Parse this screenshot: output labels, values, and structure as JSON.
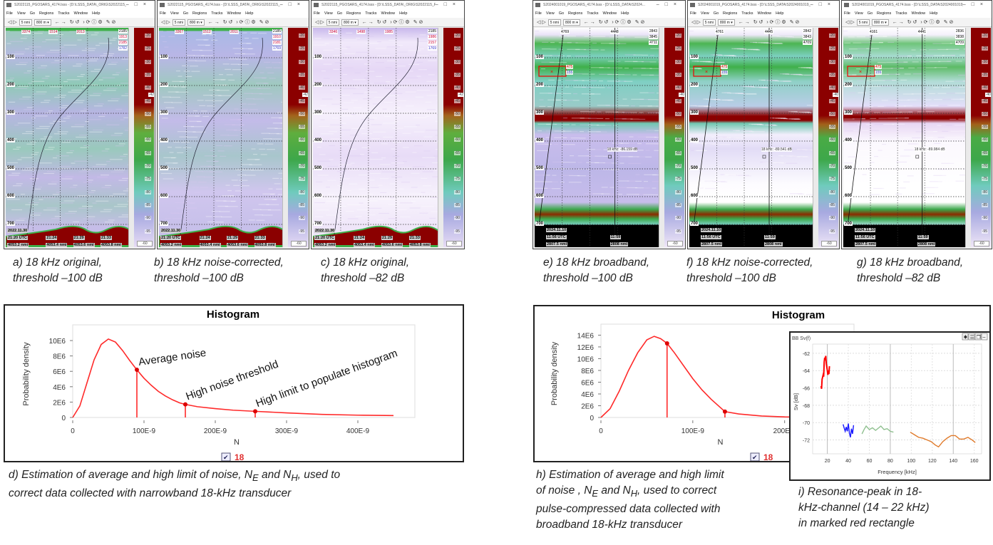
{
  "menu": [
    "File",
    "View",
    "Go",
    "Regions",
    "Tracks",
    "Window",
    "Help"
  ],
  "toolbar": {
    "range": "5 nmi",
    "depth": "800 m"
  },
  "colorbar_labels": [
    "-20",
    "-25",
    "-30",
    "-35",
    "-40",
    "-45",
    "-50",
    "-55",
    "-60",
    "-65",
    "-70",
    "-75",
    "-80",
    "-85",
    "-90",
    "-95"
  ],
  "colorbar_min_box": "-60",
  "panels": [
    {
      "id": "a",
      "title": "S2022115_PGOSARS_4174.lsss - [D:\\LSSS_DATA\\_ORIG\\S2022115_PG.O.Sars[4174]_CRIMAC\\ACOU",
      "style": "orig",
      "depths": [
        "100",
        "200",
        "300",
        "400",
        "500",
        "600",
        "700"
      ],
      "top_labels": [
        "3374",
        "1514",
        "2013"
      ],
      "stack": [
        "2185",
        "1913",
        "2185",
        "1782"
      ],
      "threshold_marker": "-42",
      "date": "2022.11.30",
      "times": [
        {
          "t": "21:20 UTC",
          "d": "4053.2 nmi"
        },
        {
          "t": "21:24",
          "d": "4053.4 nmi"
        },
        {
          "t": "21:29",
          "d": "4053.6 nmi"
        },
        {
          "t": "21:33",
          "d": "4053.8 nmi"
        }
      ]
    },
    {
      "id": "b",
      "title": "S2022115_PGOSARS_4174.lsss - [D:\\LSSS_DATA\\_ORIG\\S2022115_PG.O.Sars[4174]_CRIMAC\\ACOU",
      "style": "corr",
      "depths": [
        "100",
        "200",
        "300",
        "400",
        "500",
        "600",
        "700"
      ],
      "top_labels": [
        "3367",
        "1512",
        "2011"
      ],
      "stack": [
        "2185",
        "1910",
        "2181",
        "1769"
      ],
      "threshold_marker": "-42",
      "date": "2022.11.30",
      "times": [
        {
          "t": "21:20 UTC",
          "d": "4053.2 nmi"
        },
        {
          "t": "21:24",
          "d": "4053.4 nmi"
        },
        {
          "t": "21:29",
          "d": "4053.6 nmi"
        },
        {
          "t": "21:33",
          "d": "4053.8 nmi"
        }
      ]
    },
    {
      "id": "c",
      "title": "S2022115_PGOSARS_4174.lsss - [D:\\LSSS_DATA\\_ORIG\\S2022115_PG.O.Sars[4174]_CRIMAC\\ACOU",
      "style": "light",
      "depths": [
        "100",
        "200",
        "300",
        "400",
        "500",
        "600",
        "700"
      ],
      "top_labels": [
        "3346",
        "1498",
        "1985"
      ],
      "stack": [
        "2185",
        "1986",
        "2157",
        "1769"
      ],
      "threshold_marker": "-42",
      "date": "2022.11.30",
      "times": [
        {
          "t": "21:20 UTC",
          "d": "4053.2 nmi"
        },
        {
          "t": "21:24",
          "d": "4053.4 nmi"
        },
        {
          "t": "21:29",
          "d": "4053.6 nmi"
        },
        {
          "t": "21:33",
          "d": "4053.8 nmi"
        }
      ]
    },
    {
      "id": "e",
      "title": "S2024001019_PGOSARS_4174.lsss - [D:\\LSSS_DATA\\S2024...",
      "style": "bb",
      "depths": [
        "100",
        "200",
        "300",
        "400",
        "500",
        "600",
        "700"
      ],
      "top_labels": [
        "4769",
        "4448"
      ],
      "stack": [
        "2843",
        "3845",
        "4711"
      ],
      "rect_labels": [
        "475",
        "155"
      ],
      "marker": "18 kHz: -86.159 dB",
      "threshold_marker": "-40",
      "date": "2024.11.10",
      "times": [
        {
          "t": "11:56 UTC",
          "d": "2807.5 nmi"
        },
        {
          "t": "11:59",
          "d": "2808 nmi"
        }
      ]
    },
    {
      "id": "f",
      "title": "S2024001019_PGOSARS_4174.lsss - [D:\\LSSS_DATA\\S2024001019_PGOS...",
      "style": "bbcorr",
      "depths": [
        "100",
        "200",
        "300",
        "400",
        "500",
        "600",
        "700"
      ],
      "top_labels": [
        "4761",
        "4445"
      ],
      "stack": [
        "2842",
        "3843",
        "4709"
      ],
      "rect_labels": [
        "475",
        "155"
      ],
      "marker": "18 kHz: -89.541 dB",
      "threshold_marker": "-40",
      "date": "2024.11.10",
      "times": [
        {
          "t": "11:56 UTC",
          "d": "2807.5 nmi"
        },
        {
          "t": "11:59",
          "d": "2808 nmi"
        }
      ]
    },
    {
      "id": "g",
      "title": "S2024001019_PGOSARS_4174.lsss - [D:\\LSSS_DATA\\S2024001019_PGOSARS_4174...",
      "style": "bblight",
      "depths": [
        "100",
        "200",
        "300",
        "400",
        "500",
        "600",
        "700"
      ],
      "top_labels": [
        "4161",
        "4441"
      ],
      "stack": [
        "2836",
        "3838",
        "4709"
      ],
      "rect_labels": [
        "475",
        "155"
      ],
      "marker": "18 kHz: -89.984 dB",
      "threshold_marker": "-40",
      "date": "2024.11.10",
      "times": [
        {
          "t": "11:56 UTC",
          "d": "2807.5 nmi"
        },
        {
          "t": "11:59",
          "d": "2808 nmi"
        }
      ]
    }
  ],
  "captions": {
    "a": [
      "a) 18 kHz original,",
      "threshold –100 dB"
    ],
    "b": [
      "b) 18 kHz noise-corrected,",
      "threshold –100 dB"
    ],
    "c": [
      "c) 18 kHz original,",
      "threshold –82 dB"
    ],
    "e": [
      "e) 18 kHz broadband,",
      "threshold –100 dB"
    ],
    "f": [
      "f) 18 kHz noise-corrected,",
      "threshold –100 dB"
    ],
    "g": [
      "g) 18 kHz broadband,",
      "threshold –82 dB"
    ],
    "d": {
      "pre": "d) Estimation of average and high limit of noise, ",
      "n": "N",
      "e": "E",
      "and": " and ",
      "h": "H",
      "post": ", used to",
      "line2": "correct data collected with narrowband 18-kHz transducer"
    },
    "h": {
      "line1": "h) Estimation of average and high limit",
      "pre": "of noise , ",
      "n": "N",
      "e": "E",
      "and": " and ",
      "h": "H",
      "post": ", used to correct",
      "line3": "pulse-compressed data collected with",
      "line4": "broadband 18-kHz transducer"
    },
    "i": [
      "i) Resonance-peak in 18-",
      "kHz-channel (14 – 22 kHz)",
      "in marked red rectangle"
    ]
  },
  "colors": {
    "curve": "#ff2a2a",
    "legend": "#e03030",
    "sv_18": "#ff0000",
    "sv_38": "#1a1aff",
    "sv_70": "#8fc08f",
    "sv_120": "#e07a2a"
  },
  "chart_data": [
    {
      "type": "line",
      "title": "Histogram",
      "xlabel": "N",
      "ylabel": "Probability density",
      "x_unit": "E-9",
      "y_unit": "E6",
      "xticks": [
        "0",
        "100E-9",
        "200E-9",
        "300E-9",
        "400E-9"
      ],
      "xtick_values": [
        0,
        100,
        200,
        300,
        400
      ],
      "yticks": [
        "0",
        "2E6",
        "4E6",
        "6E6",
        "8E6",
        "10E6"
      ],
      "ytick_values": [
        0,
        2,
        4,
        6,
        8,
        10
      ],
      "xlim": [
        0,
        460
      ],
      "ylim": [
        0,
        11.3
      ],
      "grid": false,
      "legend": {
        "checked": true,
        "label": "18",
        "placement": "bottom"
      },
      "series": [
        {
          "name": "18",
          "points": [
            [
              0,
              0
            ],
            [
              10,
              1.5
            ],
            [
              20,
              4.5
            ],
            [
              30,
              7.5
            ],
            [
              40,
              9.5
            ],
            [
              50,
              10.2
            ],
            [
              60,
              9.8
            ],
            [
              70,
              8.7
            ],
            [
              80,
              7.4
            ],
            [
              90,
              6.2
            ],
            [
              100,
              5.1
            ],
            [
              110,
              4.2
            ],
            [
              120,
              3.4
            ],
            [
              130,
              2.8
            ],
            [
              140,
              2.3
            ],
            [
              150,
              1.9
            ],
            [
              158,
              1.7
            ],
            [
              175,
              1.4
            ],
            [
              200,
              1.15
            ],
            [
              225,
              0.95
            ],
            [
              256,
              0.8
            ],
            [
              300,
              0.6
            ],
            [
              350,
              0.4
            ],
            [
              400,
              0.3
            ],
            [
              450,
              0.25
            ]
          ]
        }
      ],
      "markers": [
        {
          "x": 90,
          "y": 6.2,
          "label": "Average noise"
        },
        {
          "x": 158,
          "y": 1.7,
          "label": "High noise threshold"
        },
        {
          "x": 256,
          "y": 0.8,
          "label": "High limit to populate histogram"
        }
      ]
    },
    {
      "type": "line",
      "title": "Histogram",
      "xlabel": "N",
      "ylabel": "Probability density",
      "xticks": [
        "0",
        "100E-9",
        "200E-9"
      ],
      "xtick_values": [
        0,
        100,
        200
      ],
      "yticks": [
        "0",
        "2E6",
        "4E6",
        "6E6",
        "8E6",
        "10E6",
        "12E6",
        "14E6"
      ],
      "ytick_values": [
        0,
        2,
        4,
        6,
        8,
        10,
        12,
        14
      ],
      "xlim": [
        0,
        260
      ],
      "ylim": [
        0,
        14.9
      ],
      "grid": false,
      "legend": {
        "checked": true,
        "label": "18",
        "placement": "bottom"
      },
      "series": [
        {
          "name": "18",
          "points": [
            [
              0,
              0
            ],
            [
              10,
              1.5
            ],
            [
              20,
              4.5
            ],
            [
              30,
              8
            ],
            [
              40,
              11
            ],
            [
              50,
              13.2
            ],
            [
              58,
              13.8
            ],
            [
              65,
              13.4
            ],
            [
              72,
              12.6
            ],
            [
              80,
              11
            ],
            [
              90,
              8.8
            ],
            [
              100,
              6.6
            ],
            [
              110,
              4.7
            ],
            [
              120,
              3.1
            ],
            [
              135,
              1.0
            ],
            [
              150,
              0.6
            ],
            [
              175,
              0.25
            ],
            [
              200,
              0.1
            ],
            [
              230,
              0.05
            ],
            [
              260,
              0.03
            ]
          ]
        }
      ],
      "markers": [
        {
          "x": 72,
          "y": 12.6
        },
        {
          "x": 135,
          "y": 1.0
        }
      ]
    },
    {
      "type": "line",
      "title": "BB Sv(f)",
      "xlabel": "Frequency [kHz]",
      "ylabel": "Sv [dB]",
      "xticks": [
        "20",
        "40",
        "60",
        "80",
        "100",
        "120",
        "140",
        "160"
      ],
      "xtick_values": [
        20,
        40,
        60,
        80,
        100,
        120,
        140,
        160
      ],
      "yticks": [
        "-62",
        "-64",
        "-66",
        "-68",
        "-70",
        "-72"
      ],
      "ytick_values": [
        -62,
        -64,
        -66,
        -68,
        -70,
        -72
      ],
      "xlim": [
        6,
        167
      ],
      "ylim": [
        -73.6,
        -61.6
      ],
      "grid": true,
      "series": [
        {
          "points": [
            [
              14,
              -65.8
            ],
            [
              14.5,
              -66.1
            ],
            [
              15,
              -65
            ],
            [
              16,
              -64.5
            ],
            [
              16.5,
              -64.7
            ],
            [
              17,
              -63
            ],
            [
              17.5,
              -62.5
            ],
            [
              18,
              -62.8
            ],
            [
              18.5,
              -62.3
            ],
            [
              19,
              -63.2
            ],
            [
              19.5,
              -63.6
            ],
            [
              20,
              -64
            ],
            [
              20.5,
              -64.5
            ],
            [
              21,
              -64
            ],
            [
              21.5,
              -64.4
            ],
            [
              22,
              -63.5
            ]
          ]
        },
        {
          "points": [
            [
              35,
              -70.2
            ],
            [
              36,
              -70.6
            ],
            [
              37,
              -71
            ],
            [
              38,
              -70.5
            ],
            [
              39,
              -71
            ],
            [
              40,
              -70.1
            ],
            [
              41,
              -71.2
            ],
            [
              42,
              -71.7
            ],
            [
              43,
              -70.7
            ],
            [
              44,
              -71.3
            ],
            [
              45,
              -70.3
            ]
          ]
        },
        {
          "points": [
            [
              53,
              -71.3
            ],
            [
              55,
              -70.8
            ],
            [
              57,
              -70.4
            ],
            [
              60,
              -70.8
            ],
            [
              63,
              -70.6
            ],
            [
              66,
              -70.9
            ],
            [
              69,
              -70.6
            ],
            [
              71,
              -70.4
            ],
            [
              74,
              -70.8
            ],
            [
              77,
              -70.7
            ],
            [
              80,
              -71
            ],
            [
              83,
              -71.1
            ]
          ]
        },
        {
          "points": [
            [
              99,
              -71.1
            ],
            [
              103,
              -71.4
            ],
            [
              107,
              -71.7
            ],
            [
              111,
              -71.8
            ],
            [
              115,
              -72
            ],
            [
              119,
              -72.2
            ],
            [
              123,
              -72.6
            ],
            [
              126,
              -72.8
            ],
            [
              130,
              -72.2
            ],
            [
              134,
              -71.8
            ],
            [
              138,
              -71.5
            ],
            [
              142,
              -71.5
            ],
            [
              146,
              -71.9
            ],
            [
              150,
              -71.9
            ],
            [
              154,
              -71.7
            ],
            [
              158,
              -72
            ],
            [
              161,
              -72.3
            ]
          ]
        }
      ],
      "window_buttons": [
        "pin-icon",
        "list-icon",
        "copy-icon",
        "minimize-icon"
      ]
    }
  ]
}
